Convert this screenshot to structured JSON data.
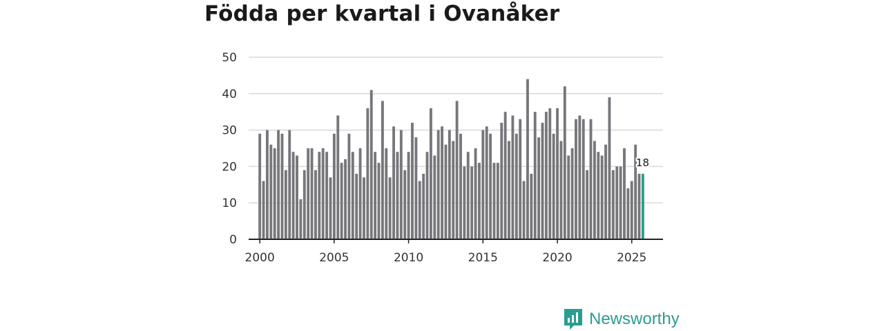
{
  "chart_data": {
    "type": "bar",
    "title": "Födda per kvartal i Ovanåker",
    "xlabel": "",
    "ylabel": "",
    "ylim": [
      0,
      50
    ],
    "yticks": [
      0,
      10,
      20,
      30,
      40,
      50
    ],
    "xticks": [
      2000,
      2005,
      2010,
      2015,
      2020,
      2025
    ],
    "xlim": [
      1999.25,
      2027.1
    ],
    "start": 2000.0,
    "step": 0.25,
    "grid": true,
    "values": [
      29,
      16,
      30,
      26,
      25,
      30,
      29,
      19,
      30,
      24,
      23,
      11,
      19,
      25,
      25,
      19,
      24,
      25,
      24,
      17,
      29,
      34,
      21,
      22,
      29,
      24,
      18,
      25,
      17,
      36,
      41,
      24,
      21,
      38,
      25,
      17,
      31,
      24,
      30,
      19,
      24,
      32,
      28,
      16,
      18,
      24,
      36,
      23,
      30,
      31,
      26,
      30,
      27,
      38,
      29,
      20,
      24,
      20,
      25,
      21,
      30,
      31,
      29,
      21,
      21,
      32,
      35,
      27,
      34,
      29,
      33,
      16,
      44,
      18,
      35,
      28,
      32,
      35,
      36,
      29,
      36,
      27,
      42,
      23,
      25,
      33,
      34,
      33,
      19,
      33,
      27,
      24,
      23,
      26,
      39,
      19,
      20,
      20,
      25,
      14,
      16,
      26,
      18,
      18
    ],
    "highlight_index": 103,
    "highlight_label": "18",
    "bar_color": "#77767b",
    "highlight_color": "#2a9d8f"
  },
  "brand": {
    "name": "Newsworthy",
    "color": "#2a9d8f"
  }
}
